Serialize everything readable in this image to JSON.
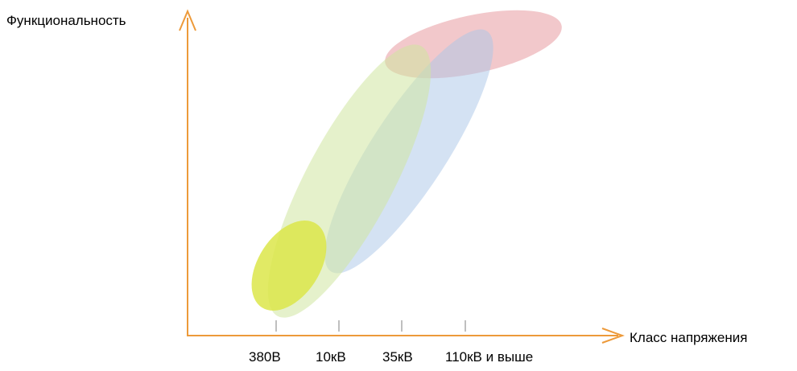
{
  "diagram": {
    "y_axis_label": "Функциональность",
    "x_axis_label": "Класс напряжения",
    "x_ticks": [
      "380В",
      "10кВ",
      "35кВ",
      "110кВ и выше"
    ],
    "axis_color": "#ED9A3A",
    "tick_color": "#7F7F7F",
    "regions": [
      {
        "id": "pink",
        "color": "#E79BA0"
      },
      {
        "id": "blue",
        "color": "#A9C6E8"
      },
      {
        "id": "green",
        "color": "#CFE6A0"
      },
      {
        "id": "yellow",
        "color": "#DCE64A"
      }
    ]
  }
}
